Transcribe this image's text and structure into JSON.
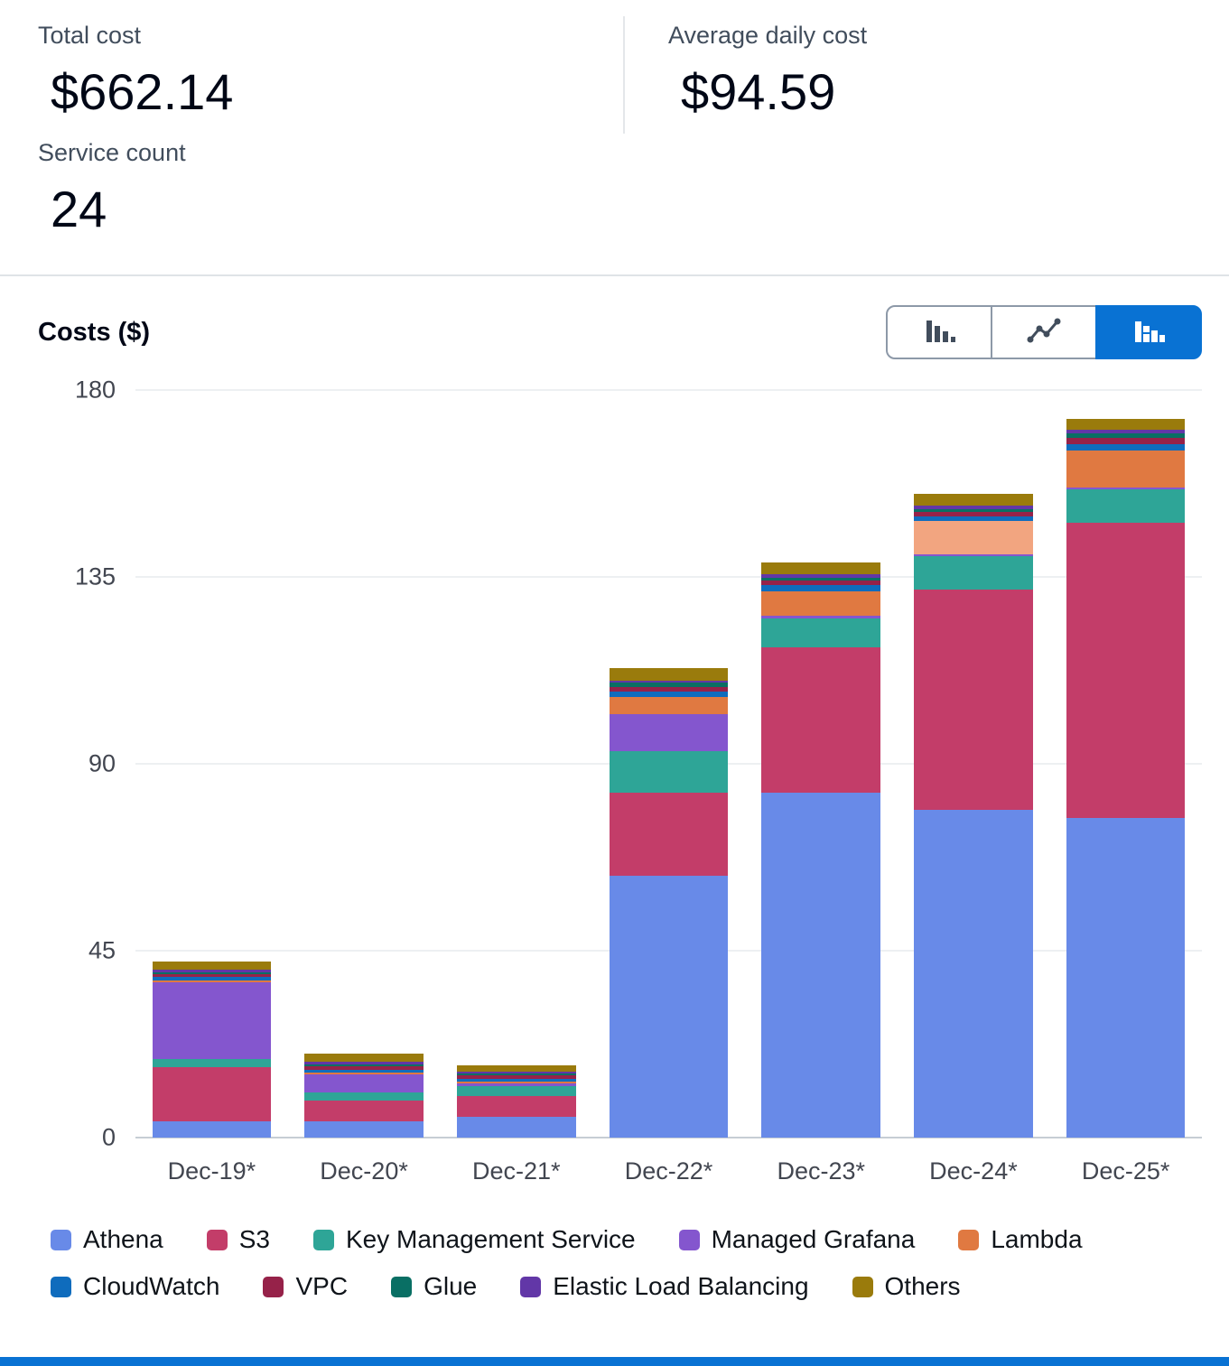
{
  "stats": {
    "total_cost": {
      "label": "Total cost",
      "value": "$662.14"
    },
    "avg_daily_cost": {
      "label": "Average daily cost",
      "value": "$94.59"
    },
    "service_count": {
      "label": "Service count",
      "value": "24"
    }
  },
  "chart": {
    "title": "Costs ($)",
    "toolbar": {
      "buttons": [
        {
          "name": "bar-chart",
          "active": false
        },
        {
          "name": "line-chart",
          "active": false
        },
        {
          "name": "stacked-bar-chart",
          "active": true
        }
      ],
      "active_color": "#0972d3"
    }
  },
  "chart_data": {
    "type": "bar",
    "stacked": true,
    "title": "Costs ($)",
    "categories": [
      "Dec-19*",
      "Dec-20*",
      "Dec-21*",
      "Dec-22*",
      "Dec-23*",
      "Dec-24*",
      "Dec-25*"
    ],
    "series": [
      {
        "name": "Athena",
        "color": "#688AE8",
        "values": [
          4,
          4,
          5,
          63,
          83,
          79,
          77
        ]
      },
      {
        "name": "S3",
        "color": "#C33D69",
        "values": [
          13,
          5,
          5,
          20,
          35,
          53,
          71
        ]
      },
      {
        "name": "Key Management Service",
        "color": "#2EA597",
        "values": [
          2,
          1.8,
          2.5,
          10,
          7,
          8,
          8
        ]
      },
      {
        "name": "Managed Grafana",
        "color": "#8456CE",
        "values": [
          18.5,
          4.5,
          0.6,
          9,
          0.6,
          0.4,
          0.5
        ]
      },
      {
        "name": "Lambda",
        "color": "#E07941",
        "values": [
          0.3,
          0.3,
          0.3,
          4,
          6,
          8,
          9
        ]
      },
      {
        "name": "CloudWatch",
        "color": "#0F6CBD",
        "values": [
          0.8,
          0.8,
          0.8,
          1.5,
          1.5,
          1.2,
          1.5
        ]
      },
      {
        "name": "VPC",
        "color": "#962249",
        "values": [
          0.8,
          0.8,
          0.8,
          1,
          1,
          1,
          1.5
        ]
      },
      {
        "name": "Glue",
        "color": "#096F64",
        "values": [
          0.4,
          0.4,
          0.4,
          1,
          0.8,
          0.8,
          1
        ]
      },
      {
        "name": "Elastic Load Balancing",
        "color": "#6237A7",
        "values": [
          0.6,
          0.6,
          0.5,
          0.5,
          0.7,
          0.7,
          1
        ]
      },
      {
        "name": "Others",
        "color": "#9A7B0C",
        "values": [
          2,
          2,
          1.5,
          3,
          3,
          3,
          2.5
        ]
      }
    ],
    "color_overrides": [
      {
        "series": "Lambda",
        "category": "Dec-24*",
        "color": "#F2A580"
      }
    ],
    "xlabel": "",
    "ylabel": "Costs ($)",
    "ylim": [
      0,
      180
    ],
    "yticks": [
      0,
      45,
      90,
      135,
      180
    ],
    "grid": true,
    "legend_position": "bottom"
  }
}
